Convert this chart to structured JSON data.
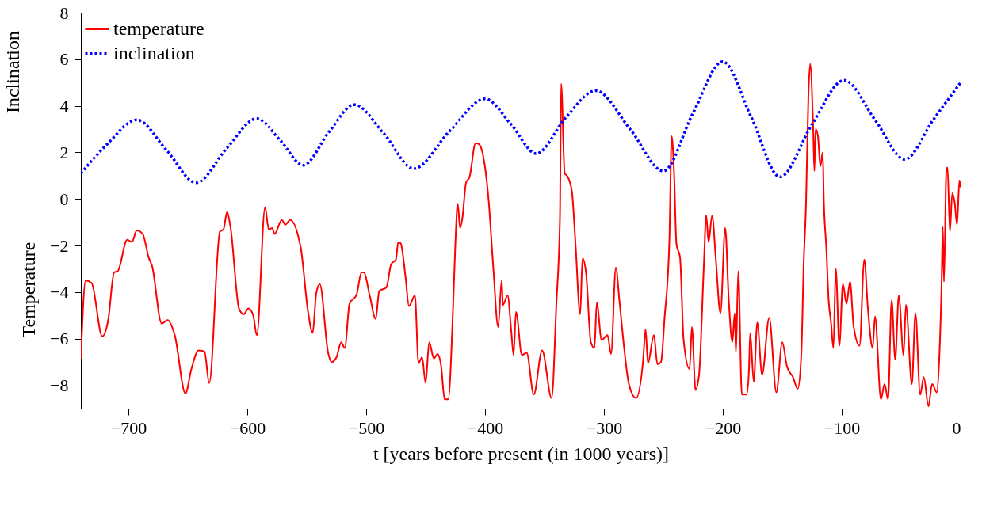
{
  "chart_data": {
    "type": "line",
    "xlabel": "t [years before present (in 1000 years)]",
    "ylabel": "Temperature",
    "annotations": [
      "Inclination"
    ],
    "xlim": [
      -740,
      0
    ],
    "ylim": [
      -9,
      8
    ],
    "xticks": [
      -700,
      -600,
      -500,
      -400,
      -300,
      -200,
      -100,
      0
    ],
    "yticks": [
      -8,
      -6,
      -4,
      -2,
      0,
      2,
      4,
      6,
      8
    ],
    "grid": false,
    "legend": "top left",
    "series": [
      {
        "name": "temperature",
        "color": "#ff0000",
        "line_style": "solid",
        "x": [
          -740,
          -736,
          -731,
          -722,
          -717,
          -712,
          -709,
          -701,
          -697,
          -693,
          -688,
          -683,
          -680,
          -672,
          -667,
          -661,
          -652,
          -647,
          -641,
          -636,
          -632,
          -623,
          -620,
          -617,
          -614,
          -607,
          -603,
          -599,
          -595,
          -592,
          -585,
          -582,
          -579,
          -577,
          -571,
          -568,
          -564,
          -555,
          -549,
          -545,
          -542,
          -539,
          -532,
          -529,
          -525,
          -521,
          -518,
          -514,
          -508,
          -504,
          -502,
          -497,
          -492,
          -489,
          -483,
          -479,
          -475,
          -473,
          -471,
          -467,
          -464,
          -459,
          -456,
          -453,
          -450,
          -447,
          -443,
          -440,
          -437,
          -434,
          -431,
          -427,
          -425,
          -423,
          -421,
          -419,
          -416,
          -413,
          -408,
          -405,
          -402,
          -397,
          -393,
          -389,
          -386,
          -385,
          -381,
          -378,
          -376,
          -374,
          -369,
          -365,
          -359,
          -352,
          -344,
          -340,
          -337,
          -336,
          -333,
          -331,
          -327,
          -324,
          -320,
          -318,
          -315,
          -311,
          -308,
          -306,
          -302,
          -297,
          -294,
          -290,
          -287,
          -283,
          -279,
          -273,
          -267,
          -265,
          -263,
          -258,
          -255,
          -252,
          -249,
          -245,
          -243,
          -241,
          -239,
          -236,
          -233,
          -228,
          -226,
          -223,
          -220,
          -216,
          -214,
          -212,
          -209,
          -206,
          -202,
          -198,
          -195,
          -192,
          -190,
          -189,
          -187,
          -184,
          -180,
          -178,
          -177,
          -174,
          -171,
          -167,
          -161,
          -155,
          -150,
          -146,
          -141,
          -137,
          -134,
          -132,
          -130,
          -128,
          -126.5,
          -124,
          -123,
          -122,
          -120,
          -118,
          -116,
          -115,
          -113,
          -111,
          -109,
          -107,
          -105,
          -102,
          -99,
          -96,
          -93,
          -90,
          -85,
          -81,
          -78,
          -74,
          -72,
          -67,
          -64,
          -61,
          -58,
          -55,
          -52,
          -48,
          -46,
          -41,
          -38,
          -34,
          -31,
          -27,
          -24,
          -20,
          -18,
          -16,
          -15,
          -14,
          -12,
          -11,
          -9,
          -7,
          -5,
          -3,
          -1,
          0
        ],
        "values": [
          -6.85,
          -3.5,
          -3.6,
          -5.9,
          -5.2,
          -3.15,
          -3.1,
          -1.75,
          -1.85,
          -1.35,
          -1.5,
          -2.5,
          -2.9,
          -5.35,
          -5.2,
          -5.85,
          -8.35,
          -7.3,
          -6.5,
          -6.55,
          -7.9,
          -1.4,
          -1.3,
          -0.55,
          -1.25,
          -4.7,
          -4.95,
          -4.7,
          -5.0,
          -5.85,
          -0.35,
          -1.3,
          -1.25,
          -1.5,
          -0.9,
          -1.1,
          -0.9,
          -2.1,
          -4.8,
          -5.75,
          -4.05,
          -3.65,
          -6.6,
          -7.0,
          -6.8,
          -6.15,
          -6.4,
          -4.5,
          -4.1,
          -3.15,
          -3.15,
          -4.15,
          -5.15,
          -3.95,
          -3.8,
          -2.8,
          -2.6,
          -1.85,
          -1.9,
          -3.3,
          -4.6,
          -4.15,
          -7.05,
          -6.8,
          -7.9,
          -6.15,
          -6.85,
          -6.65,
          -7.15,
          -8.6,
          -8.6,
          -4.8,
          -1.95,
          -0.2,
          -1.25,
          -0.8,
          0.7,
          0.95,
          2.4,
          2.35,
          1.95,
          -0.05,
          -3.0,
          -5.5,
          -3.5,
          -4.55,
          -4.15,
          -5.65,
          -6.7,
          -4.85,
          -6.7,
          -6.6,
          -8.4,
          -6.5,
          -8.55,
          -4.5,
          -0.8,
          4.95,
          1.1,
          1.0,
          0.35,
          -1.85,
          -4.95,
          -2.55,
          -3.2,
          -6.15,
          -6.4,
          -4.45,
          -6.05,
          -5.85,
          -6.65,
          -2.95,
          -4.35,
          -6.4,
          -7.95,
          -8.55,
          -6.9,
          -5.6,
          -7.05,
          -5.85,
          -7.1,
          -7.0,
          -5.1,
          -1.85,
          2.7,
          1.1,
          -1.95,
          -2.5,
          -6.05,
          -7.3,
          -5.5,
          -8.2,
          -7.55,
          -2.9,
          -0.7,
          -1.85,
          -0.7,
          -2.5,
          -4.9,
          -1.25,
          -4.35,
          -6.15,
          -4.9,
          -6.6,
          -3.1,
          -8.4,
          -8.4,
          -7.3,
          -5.75,
          -7.85,
          -5.3,
          -7.55,
          -5.1,
          -8.3,
          -6.15,
          -7.2,
          -7.65,
          -8.15,
          -6.7,
          -2.8,
          -0.15,
          4.5,
          5.8,
          3.0,
          1.2,
          3.0,
          2.7,
          1.4,
          2.0,
          -0.15,
          -2.05,
          -4.35,
          -5.3,
          -6.4,
          -3.0,
          -6.3,
          -3.65,
          -4.5,
          -3.55,
          -5.45,
          -6.3,
          -2.6,
          -4.7,
          -6.4,
          -5.05,
          -8.6,
          -7.95,
          -8.6,
          -4.35,
          -6.9,
          -4.15,
          -6.7,
          -4.55,
          -7.95,
          -4.9,
          -8.4,
          -7.65,
          -8.9,
          -7.95,
          -8.3,
          -6.9,
          -3.65,
          -1.2,
          -3.55,
          1.2,
          1.35,
          -1.4,
          0.25,
          -0.15,
          -1.1,
          0.8,
          0.5
        ]
      },
      {
        "name": "inclination",
        "color": "#0000ff",
        "line_style": "dotted",
        "x": [
          -740,
          -717,
          -693,
          -668,
          -643,
          -617,
          -592,
          -572,
          -553,
          -531,
          -510,
          -485,
          -460,
          -430,
          -400,
          -378,
          -357,
          -332,
          -307,
          -278,
          -250,
          -225,
          -200,
          -176,
          -152,
          -125,
          -98,
          -72,
          -47,
          -23,
          0
        ],
        "values": [
          1.1,
          2.4,
          3.4,
          2.1,
          0.7,
          2.2,
          3.45,
          2.5,
          1.45,
          2.9,
          4.05,
          2.8,
          1.3,
          2.9,
          4.3,
          3.2,
          1.95,
          3.5,
          4.65,
          3.0,
          1.2,
          3.7,
          5.9,
          3.5,
          0.95,
          3.2,
          5.1,
          3.4,
          1.7,
          3.4,
          5.0
        ]
      }
    ]
  }
}
